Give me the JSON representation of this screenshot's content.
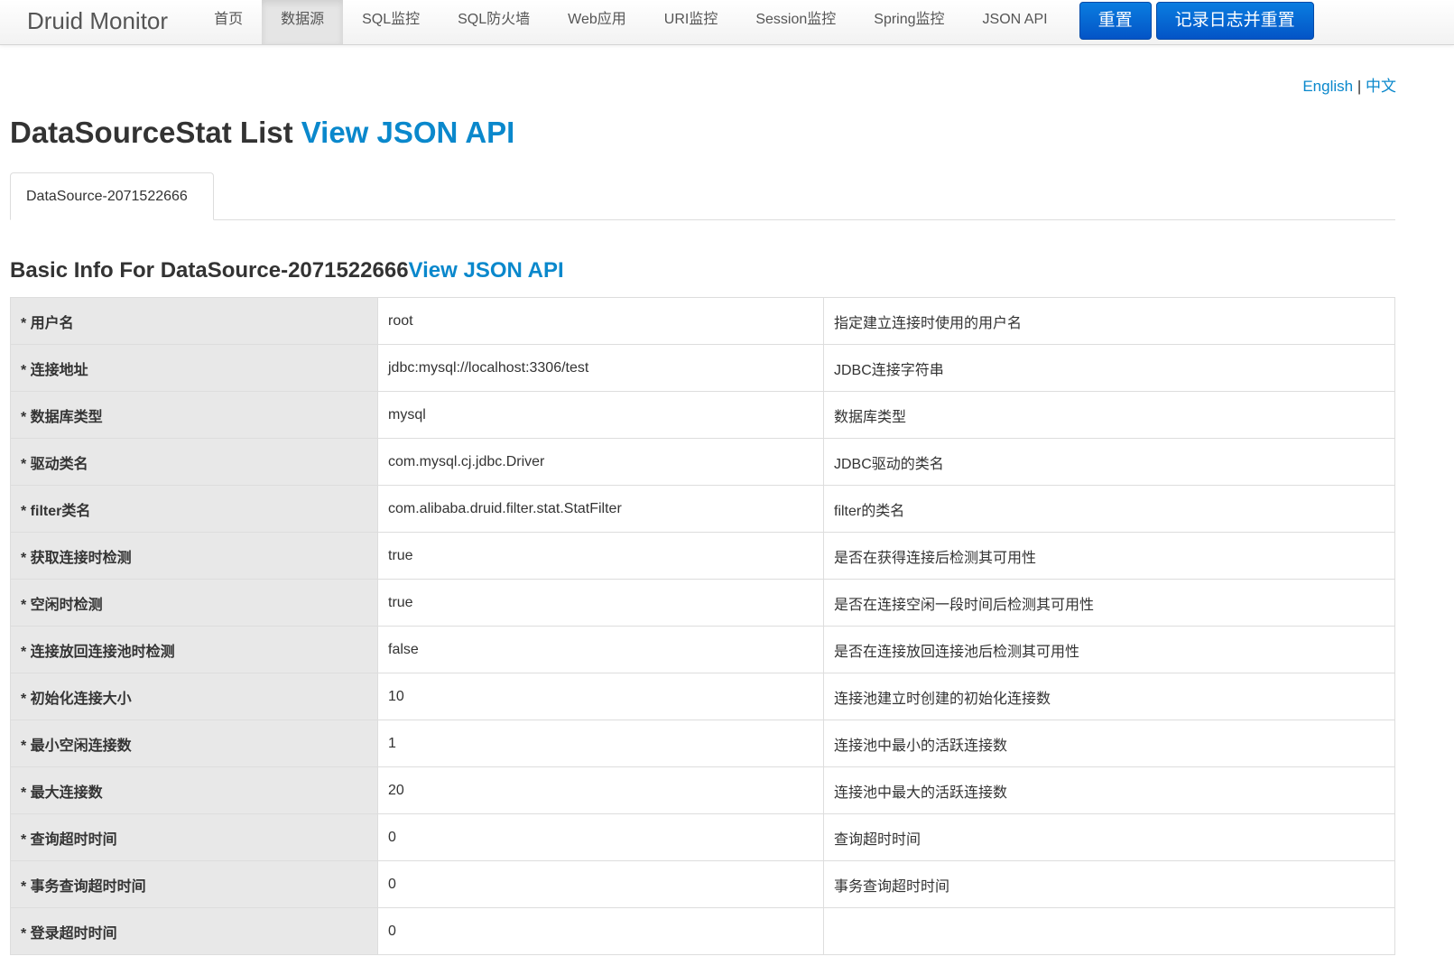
{
  "nav": {
    "brand": "Druid Monitor",
    "items": [
      "首页",
      "数据源",
      "SQL监控",
      "SQL防火墙",
      "Web应用",
      "URI监控",
      "Session监控",
      "Spring监控",
      "JSON API"
    ],
    "active": "数据源",
    "reset": "重置",
    "log_reset": "记录日志并重置"
  },
  "lang": {
    "english": "English",
    "sep": "|",
    "chinese": "中文"
  },
  "title": {
    "text": "DataSourceStat List ",
    "link": "View JSON API"
  },
  "tab": "DataSource-2071522666",
  "section": {
    "text": "Basic Info For DataSource-2071522666",
    "link": "View JSON API"
  },
  "rows": [
    [
      "* 用户名",
      "root",
      "指定建立连接时使用的用户名"
    ],
    [
      "* 连接地址",
      "jdbc:mysql://localhost:3306/test",
      "JDBC连接字符串"
    ],
    [
      "* 数据库类型",
      "mysql",
      "数据库类型"
    ],
    [
      "* 驱动类名",
      "com.mysql.cj.jdbc.Driver",
      "JDBC驱动的类名"
    ],
    [
      "* filter类名",
      "com.alibaba.druid.filter.stat.StatFilter",
      "filter的类名"
    ],
    [
      "* 获取连接时检测",
      "true",
      "是否在获得连接后检测其可用性"
    ],
    [
      "* 空闲时检测",
      "true",
      "是否在连接空闲一段时间后检测其可用性"
    ],
    [
      "* 连接放回连接池时检测",
      "false",
      "是否在连接放回连接池后检测其可用性"
    ],
    [
      "* 初始化连接大小",
      "10",
      "连接池建立时创建的初始化连接数"
    ],
    [
      "* 最小空闲连接数",
      "1",
      "连接池中最小的活跃连接数"
    ],
    [
      "* 最大连接数",
      "20",
      "连接池中最大的活跃连接数"
    ],
    [
      "* 查询超时时间",
      "0",
      "查询超时时间"
    ],
    [
      "* 事务查询超时时间",
      "0",
      "事务查询超时时间"
    ],
    [
      "* 登录超时时间",
      "0",
      ""
    ]
  ]
}
